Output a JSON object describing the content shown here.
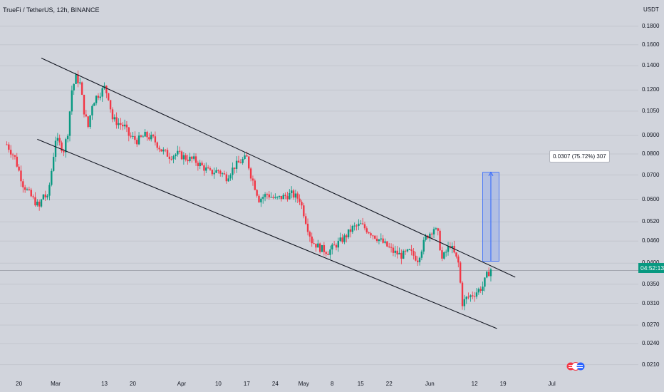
{
  "header": {
    "title": "TrueFi / TetherUS, 12h, BINANCE",
    "unit": "USDT"
  },
  "price_label": "04:52:13",
  "measure_label": "0.0307 (75.72%) 307",
  "colors": {
    "background": "#d1d4dc",
    "up": "#089981",
    "down": "#f23645",
    "trendline": "#131722",
    "measure_fill": "#2962ff",
    "grid": "#c3c6ce"
  },
  "chart_data": {
    "type": "candlestick",
    "y_scale": "log",
    "ylim": [
      0.0195,
      0.205
    ],
    "y_ticks": [
      "0.1800",
      "0.1600",
      "0.1400",
      "0.1200",
      "0.1050",
      "0.0900",
      "0.0800",
      "0.0700",
      "0.0600",
      "0.0520",
      "0.0460",
      "0.0400",
      "0.0350",
      "0.0310",
      "0.0270",
      "0.0240",
      "0.0210"
    ],
    "x_ticks": [
      "20",
      "Mar",
      "13",
      "20",
      "Apr",
      "10",
      "17",
      "24",
      "May",
      "8",
      "15",
      "22",
      "Jun",
      "12",
      "19",
      "Jul"
    ],
    "x_tick_days": [
      -9,
      0,
      12,
      19,
      31,
      40,
      47,
      54,
      61,
      68,
      75,
      82,
      92,
      103,
      110,
      122
    ],
    "channel": [
      {
        "name": "upper",
        "from": [
          -3.5,
          0.147
        ],
        "to": [
          113,
          0.0366
        ]
      },
      {
        "name": "lower",
        "from": [
          -4.5,
          0.0878
        ],
        "to": [
          108.5,
          0.0264
        ]
      }
    ],
    "measure": {
      "day_from": 105,
      "day_to": 109,
      "low": 0.0405,
      "high": 0.0712,
      "label": "0.0307 (75.72%) 307"
    },
    "current_price": 0.0382,
    "anchors": [
      [
        -12,
        0.085
      ],
      [
        -10,
        0.078
      ],
      [
        -8,
        0.066
      ],
      [
        -6,
        0.061
      ],
      [
        -4,
        0.057
      ],
      [
        -3,
        0.062
      ],
      [
        -2,
        0.06
      ],
      [
        -1,
        0.072
      ],
      [
        0,
        0.088
      ],
      [
        1,
        0.085
      ],
      [
        2,
        0.082
      ],
      [
        3,
        0.092
      ],
      [
        4,
        0.12
      ],
      [
        5,
        0.13
      ],
      [
        6,
        0.125
      ],
      [
        7,
        0.105
      ],
      [
        8,
        0.095
      ],
      [
        9,
        0.11
      ],
      [
        10,
        0.115
      ],
      [
        11,
        0.118
      ],
      [
        12,
        0.122
      ],
      [
        13,
        0.115
      ],
      [
        14,
        0.1
      ],
      [
        15,
        0.098
      ],
      [
        17,
        0.095
      ],
      [
        18,
        0.09
      ],
      [
        20,
        0.087
      ],
      [
        22,
        0.09
      ],
      [
        24,
        0.088
      ],
      [
        26,
        0.082
      ],
      [
        28,
        0.079
      ],
      [
        30,
        0.08
      ],
      [
        32,
        0.078
      ],
      [
        34,
        0.077
      ],
      [
        36,
        0.074
      ],
      [
        38,
        0.071
      ],
      [
        40,
        0.072
      ],
      [
        42,
        0.069
      ],
      [
        44,
        0.074
      ],
      [
        46,
        0.077
      ],
      [
        47,
        0.078
      ],
      [
        48,
        0.07
      ],
      [
        49,
        0.065
      ],
      [
        50,
        0.06
      ],
      [
        52,
        0.062
      ],
      [
        54,
        0.06
      ],
      [
        56,
        0.061
      ],
      [
        58,
        0.062
      ],
      [
        60,
        0.06
      ],
      [
        61,
        0.055
      ],
      [
        62,
        0.05
      ],
      [
        63,
        0.046
      ],
      [
        65,
        0.044
      ],
      [
        67,
        0.043
      ],
      [
        69,
        0.045
      ],
      [
        71,
        0.047
      ],
      [
        73,
        0.05
      ],
      [
        75,
        0.051
      ],
      [
        77,
        0.049
      ],
      [
        79,
        0.047
      ],
      [
        81,
        0.045
      ],
      [
        83,
        0.043
      ],
      [
        85,
        0.042
      ],
      [
        87,
        0.043
      ],
      [
        89,
        0.041
      ],
      [
        91,
        0.047
      ],
      [
        93,
        0.05
      ],
      [
        94,
        0.048
      ],
      [
        95,
        0.041
      ],
      [
        97,
        0.045
      ],
      [
        99,
        0.04
      ],
      [
        100,
        0.031
      ],
      [
        101,
        0.032
      ],
      [
        103,
        0.033
      ],
      [
        105,
        0.0345
      ],
      [
        106,
        0.037
      ],
      [
        107,
        0.0385
      ]
    ]
  }
}
